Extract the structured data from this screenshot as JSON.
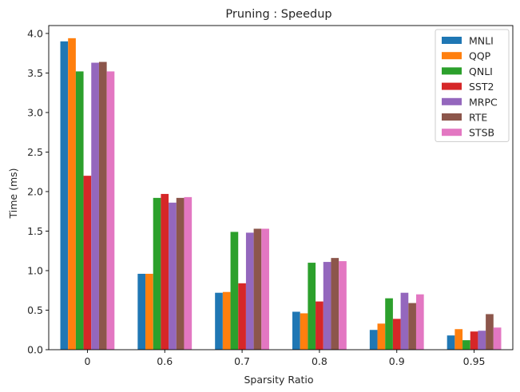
{
  "chart_data": {
    "type": "bar",
    "title": "Pruning : Speedup",
    "xlabel": "Sparsity Ratio",
    "ylabel": "Time (ms)",
    "categories": [
      "0",
      "0.6",
      "0.7",
      "0.8",
      "0.9",
      "0.95"
    ],
    "ylim": [
      0,
      4.1
    ],
    "yticks": [
      "0.0",
      "0.5",
      "1.0",
      "1.5",
      "2.0",
      "2.5",
      "3.0",
      "3.5",
      "4.0"
    ],
    "grid": false,
    "legend_position": "top-right",
    "series": [
      {
        "name": "MNLI",
        "color": "#1f77b4",
        "values": [
          3.9,
          0.96,
          0.72,
          0.48,
          0.25,
          0.18
        ]
      },
      {
        "name": "QQP",
        "color": "#ff7f0e",
        "values": [
          3.94,
          0.96,
          0.73,
          0.46,
          0.33,
          0.26
        ]
      },
      {
        "name": "QNLI",
        "color": "#2ca02c",
        "values": [
          3.52,
          1.92,
          1.49,
          1.1,
          0.65,
          0.12
        ]
      },
      {
        "name": "SST2",
        "color": "#d62728",
        "values": [
          2.2,
          1.97,
          0.84,
          0.61,
          0.39,
          0.23
        ]
      },
      {
        "name": "MRPC",
        "color": "#9467bd",
        "values": [
          3.63,
          1.86,
          1.48,
          1.11,
          0.72,
          0.24
        ]
      },
      {
        "name": "RTE",
        "color": "#8c564b",
        "values": [
          3.64,
          1.92,
          1.53,
          1.16,
          0.59,
          0.45
        ]
      },
      {
        "name": "STSB",
        "color": "#e377c2",
        "values": [
          3.52,
          1.93,
          1.53,
          1.12,
          0.7,
          0.28
        ]
      }
    ]
  }
}
